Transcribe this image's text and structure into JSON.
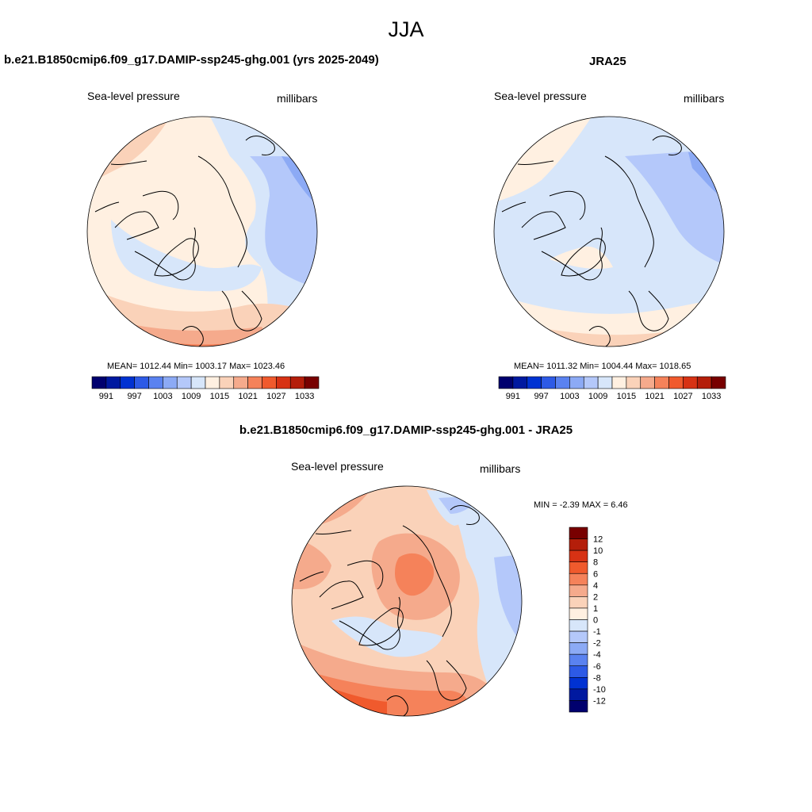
{
  "figure": {
    "season": "JJA",
    "left": {
      "title": "b.e21.B1850cmip6.f09_g17.DAMIP-ssp245-ghg.001 (yrs 2025-2049)",
      "variable": "Sea-level pressure",
      "units": "millibars",
      "stats": "MEAN= 1012.44  Min= 1003.17  Max= 1023.46"
    },
    "right": {
      "title": "JRA25",
      "variable": "Sea-level pressure",
      "units": "millibars",
      "stats": "MEAN= 1011.32  Min= 1004.44  Max= 1018.65"
    },
    "diff": {
      "title": "b.e21.B1850cmip6.f09_g17.DAMIP-ssp245-ghg.001 - JRA25",
      "variable": "Sea-level pressure",
      "units": "millibars",
      "minmax": "MIN =  -2.39 MAX =   6.46"
    }
  },
  "colorbars": {
    "slp": {
      "colors": [
        "#00006e",
        "#0019a0",
        "#0032d2",
        "#2d5ae6",
        "#5a82f0",
        "#8caaf5",
        "#b4c8fa",
        "#d7e6fa",
        "#fff0e1",
        "#fad2b9",
        "#f5aa8c",
        "#f5825a",
        "#f05a2d",
        "#d73214",
        "#b41e0a",
        "#780000"
      ],
      "labels": [
        "991",
        "997",
        "1003",
        "1009",
        "1015",
        "1021",
        "1027",
        "1033"
      ]
    },
    "diff": {
      "colors": [
        "#00006e",
        "#0019a0",
        "#0032d2",
        "#2d5ae6",
        "#5a82f0",
        "#8caaf5",
        "#b4c8fa",
        "#d7e6fa",
        "#fff0e1",
        "#fad2b9",
        "#f5aa8c",
        "#f5825a",
        "#f05a2d",
        "#d73214",
        "#b41e0a",
        "#780000"
      ],
      "labels": [
        "12",
        "10",
        "8",
        "6",
        "4",
        "2",
        "1",
        "0",
        "-1",
        "-2",
        "-4",
        "-6",
        "-8",
        "-10",
        "-12"
      ]
    }
  },
  "palette": {
    "land_outline": "#000000",
    "map_border": "#000000"
  }
}
